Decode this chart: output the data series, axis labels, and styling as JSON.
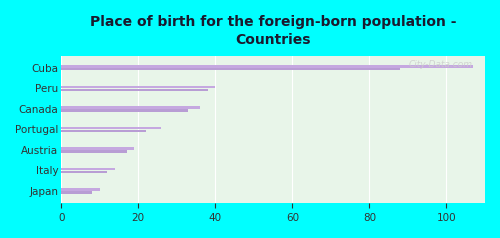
{
  "title": "Place of birth for the foreign-born population -\nCountries",
  "categories": [
    "Cuba",
    "Peru",
    "Canada",
    "Portugal",
    "Austria",
    "Italy",
    "Japan"
  ],
  "bar1_values": [
    107,
    40,
    36,
    26,
    19,
    14,
    10
  ],
  "bar2_values": [
    88,
    38,
    33,
    22,
    17,
    12,
    8
  ],
  "bar_color1": "#c5a8e0",
  "bar_color2": "#b89dd4",
  "background_color": "#00ffff",
  "plot_bg_color": "#e8f5e9",
  "title_color": "#1a1a2e",
  "xlim": [
    0,
    110
  ],
  "xticks": [
    0,
    20,
    40,
    60,
    80,
    100
  ],
  "watermark": "City-Data.com"
}
